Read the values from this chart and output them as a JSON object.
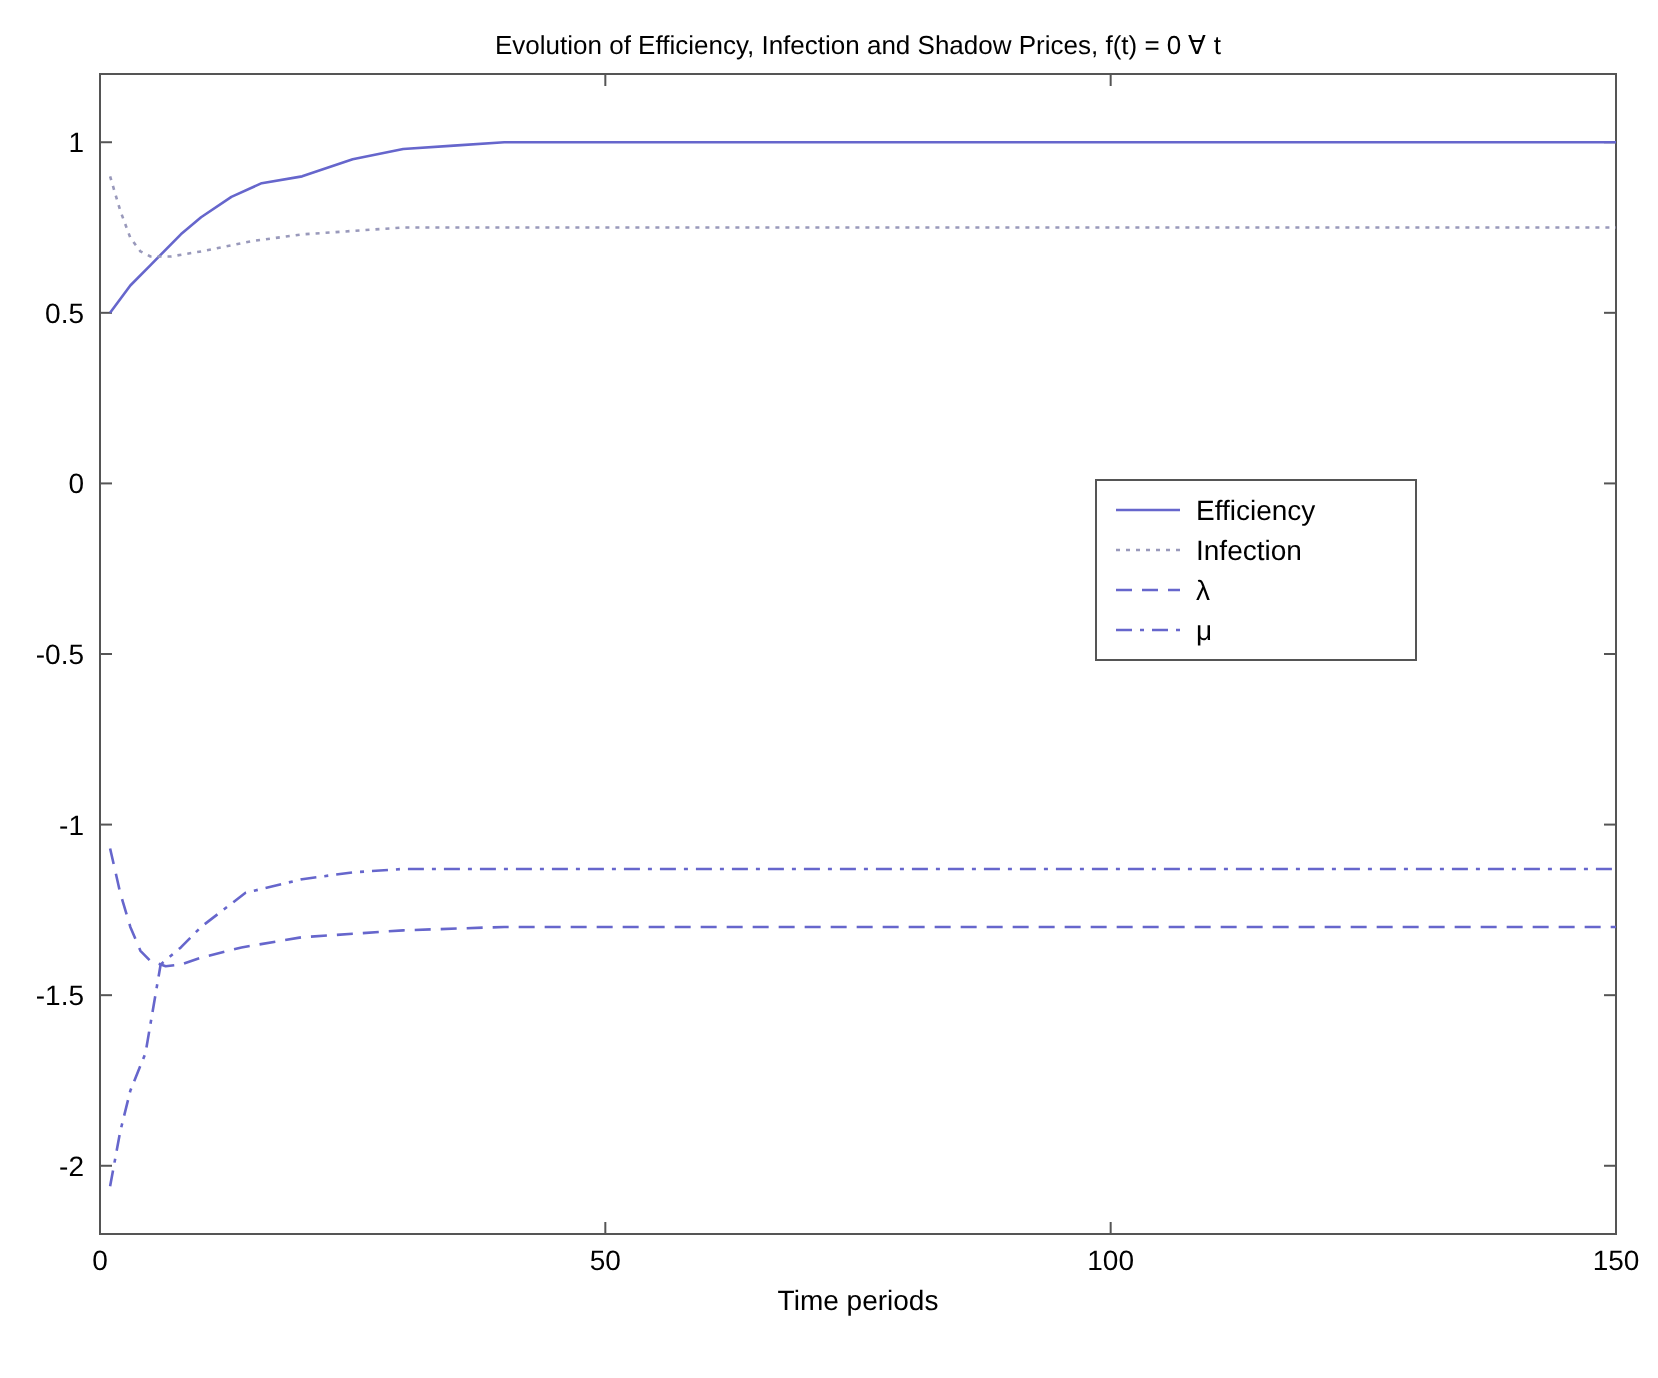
{
  "chart_data": {
    "type": "line",
    "title": "Evolution of Efficiency, Infection and Shadow Prices,  f(t) = 0 ∀ t",
    "xlabel": "Time periods",
    "xlim": [
      0,
      150
    ],
    "xticks": [
      0,
      50,
      100,
      150
    ],
    "ylim": [
      -2.2,
      1.2
    ],
    "yticks": [
      -2,
      -1.5,
      -1,
      -0.5,
      0,
      0.5,
      1
    ],
    "grid": false,
    "legend": "right",
    "series": [
      {
        "name": "Efficiency",
        "color": "#6666cc",
        "line_style": "solid",
        "x": [
          1,
          3,
          5,
          8,
          10,
          13,
          16,
          20,
          25,
          30,
          35,
          40,
          150
        ],
        "values": [
          0.5,
          0.58,
          0.64,
          0.73,
          0.78,
          0.84,
          0.88,
          0.9,
          0.95,
          0.98,
          0.99,
          1,
          1
        ]
      },
      {
        "name": "Infection",
        "color": "#9999bb",
        "line_style": "dotted",
        "x": [
          1,
          2,
          3,
          4,
          5,
          7,
          10,
          15,
          20,
          25,
          30,
          150
        ],
        "values": [
          0.9,
          0.8,
          0.72,
          0.68,
          0.665,
          0.665,
          0.68,
          0.71,
          0.73,
          0.74,
          0.75,
          0.75
        ]
      },
      {
        "name": "λ",
        "color": "#6666cc",
        "line_style": "dashed",
        "x": [
          1,
          2,
          3,
          4,
          5,
          6.5,
          8,
          10,
          14,
          20,
          25,
          30,
          40,
          150
        ],
        "values": [
          -1.07,
          -1.2,
          -1.3,
          -1.37,
          -1.4,
          -1.415,
          -1.41,
          -1.39,
          -1.36,
          -1.33,
          -1.32,
          -1.31,
          -1.3,
          -1.3
        ]
      },
      {
        "name": "μ",
        "color": "#6666cc",
        "line_style": "dashdot",
        "x": [
          1,
          2,
          3,
          4.5,
          6,
          8,
          10,
          14.4,
          20,
          25,
          30,
          40,
          150
        ],
        "values": [
          -2.06,
          -1.9,
          -1.78,
          -1.67,
          -1.41,
          -1.36,
          -1.3,
          -1.2,
          -1.16,
          -1.14,
          -1.13,
          -1.13,
          -1.13
        ]
      }
    ]
  }
}
